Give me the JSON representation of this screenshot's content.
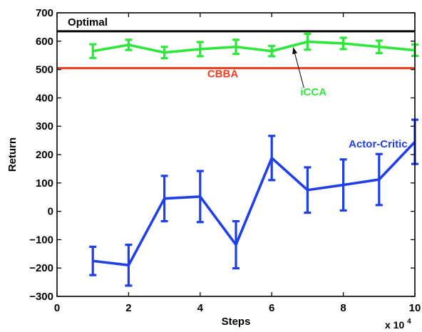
{
  "chart_data": {
    "type": "line",
    "title": "",
    "xlabel": "Steps",
    "ylabel": "Return",
    "x_multiplier_label": "x 10",
    "x_multiplier_exponent": "4",
    "xlim": [
      0,
      100000
    ],
    "ylim": [
      -300,
      700
    ],
    "xticks": [
      0,
      20000,
      40000,
      60000,
      80000,
      100000
    ],
    "xtick_labels": [
      "0",
      "2",
      "4",
      "6",
      "8",
      "10"
    ],
    "yticks": [
      -300,
      -200,
      -100,
      0,
      100,
      200,
      300,
      400,
      500,
      600,
      700
    ],
    "ytick_labels": [
      "−300",
      "−200",
      "−100",
      "0",
      "100",
      "200",
      "300",
      "400",
      "500",
      "600",
      "700"
    ],
    "grid": false,
    "legend": "none (inline labels)",
    "series": [
      {
        "name": "Optimal",
        "color": "#000000",
        "kind": "hline",
        "y": 635
      },
      {
        "name": "CBBA",
        "color": "#ee3b1f",
        "kind": "hline",
        "y": 505
      },
      {
        "name": "iCCA",
        "color": "#2de83a",
        "kind": "errorbar",
        "x": [
          10000,
          20000,
          30000,
          40000,
          50000,
          60000,
          70000,
          80000,
          90000,
          100000
        ],
        "values": [
          565,
          587,
          560,
          572,
          580,
          565,
          598,
          592,
          580,
          568
        ],
        "errors": [
          24,
          18,
          20,
          25,
          25,
          18,
          28,
          20,
          22,
          20
        ]
      },
      {
        "name": "Actor-Critic",
        "color": "#1f3fe8",
        "kind": "errorbar",
        "x": [
          10000,
          20000,
          30000,
          40000,
          50000,
          60000,
          70000,
          80000,
          90000,
          100000
        ],
        "values": [
          -175,
          -190,
          45,
          52,
          -118,
          188,
          75,
          93,
          112,
          245
        ],
        "errors": [
          50,
          72,
          80,
          90,
          83,
          78,
          80,
          90,
          90,
          78
        ]
      }
    ],
    "annotations": [
      {
        "text": "Optimal",
        "color": "#000000",
        "x": 3000,
        "y": 655
      },
      {
        "text": "CBBA",
        "color": "#ee3b1f",
        "x": 42000,
        "y": 473
      },
      {
        "text": "iCCA",
        "color": "#2de83a",
        "x": 68000,
        "y": 408
      },
      {
        "text": "Actor-Critic",
        "color": "#1f3fe8",
        "x": 81500,
        "y": 225
      }
    ],
    "arrow": {
      "from": [
        69000,
        435
      ],
      "to": [
        66000,
        578
      ]
    }
  }
}
